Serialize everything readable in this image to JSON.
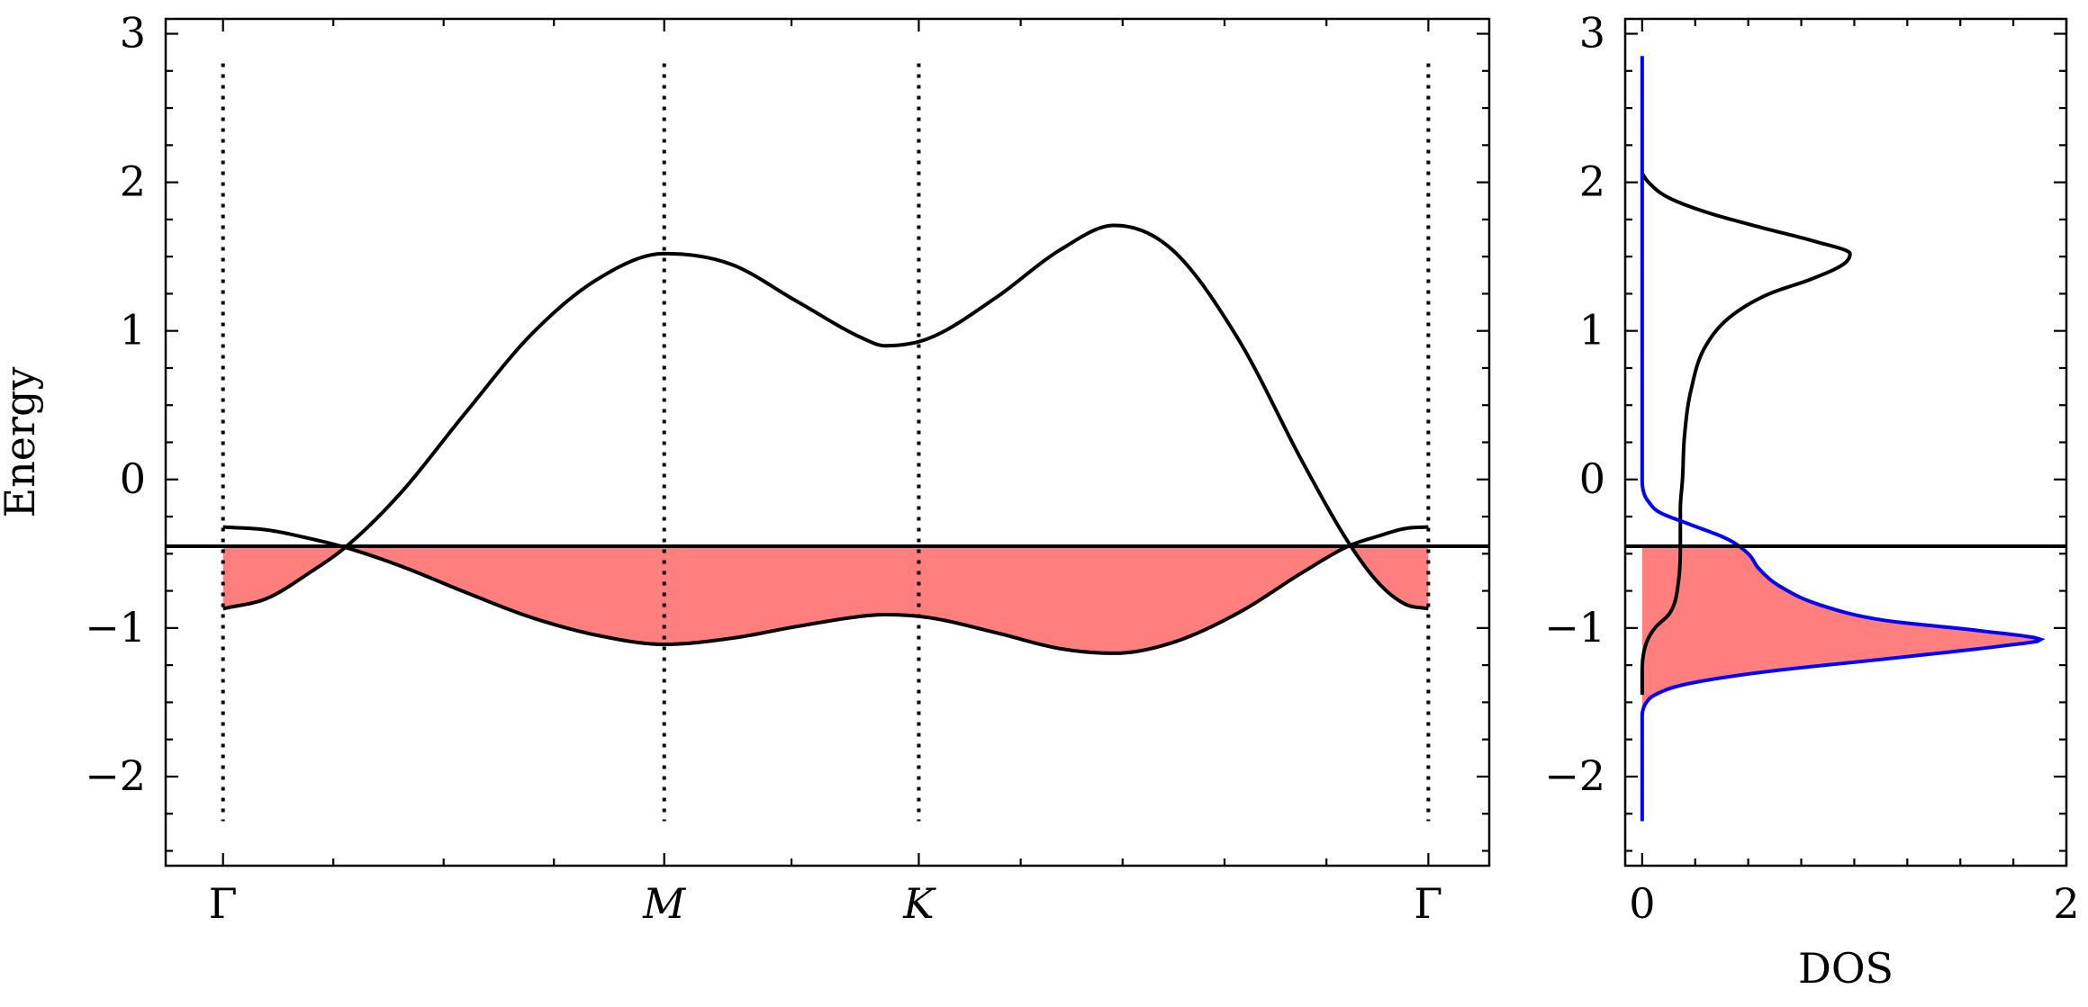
{
  "chart_data": [
    {
      "type": "line",
      "panel": "band structure",
      "ylabel": "Energy",
      "xlabel": "",
      "ylim": [
        -2.6,
        3.1
      ],
      "yticks": [
        -2,
        -1,
        0,
        1,
        2,
        3
      ],
      "ytick_labels": [
        "−2",
        "−1",
        "0",
        "1",
        "2",
        "3"
      ],
      "x_path_labels": [
        {
          "label": "Γ",
          "x": 0.0,
          "italic": false
        },
        {
          "label": "M",
          "x": 1.0,
          "italic": true
        },
        {
          "label": "K",
          "x": 1.577,
          "italic": true
        },
        {
          "label": "Γ",
          "x": 2.732,
          "italic": false
        }
      ],
      "xlim": [
        -0.13,
        2.87
      ],
      "fermi_level": -0.45,
      "vertical_dotted_lines_x": [
        0.0,
        1.0,
        1.577,
        2.732
      ],
      "vertical_dotted_lines_yrange": [
        -2.3,
        2.8
      ],
      "series": [
        {
          "band": "upper",
          "color": "#000000",
          "x": [
            0.0,
            0.1,
            0.2,
            0.28,
            0.4,
            0.55,
            0.7,
            0.85,
            1.0,
            1.15,
            1.3,
            1.45,
            1.5,
            1.6,
            1.75,
            1.9,
            2.02,
            2.15,
            2.3,
            2.45,
            2.55,
            2.62,
            2.68,
            2.732
          ],
          "y": [
            -0.87,
            -0.8,
            -0.62,
            -0.45,
            -0.1,
            0.45,
            0.98,
            1.35,
            1.52,
            1.45,
            1.2,
            0.95,
            0.9,
            0.95,
            1.22,
            1.55,
            1.71,
            1.55,
            0.95,
            0.1,
            -0.42,
            -0.7,
            -0.84,
            -0.87
          ]
        },
        {
          "band": "lower",
          "color": "#000000",
          "x": [
            0.0,
            0.1,
            0.2,
            0.28,
            0.4,
            0.55,
            0.7,
            0.85,
            1.0,
            1.15,
            1.3,
            1.45,
            1.5,
            1.6,
            1.75,
            1.9,
            2.02,
            2.15,
            2.3,
            2.45,
            2.55,
            2.62,
            2.68,
            2.732
          ],
          "y": [
            -0.32,
            -0.34,
            -0.4,
            -0.46,
            -0.58,
            -0.76,
            -0.93,
            -1.05,
            -1.11,
            -1.07,
            -0.99,
            -0.92,
            -0.91,
            -0.93,
            -1.03,
            -1.14,
            -1.17,
            -1.1,
            -0.9,
            -0.62,
            -0.45,
            -0.38,
            -0.33,
            -0.32
          ]
        }
      ],
      "fill_color": "#ff7f7f",
      "fill": "occupied states between the two bands below the Fermi level"
    },
    {
      "type": "line",
      "panel": "density of states",
      "xlabel": "DOS",
      "ylabel": "",
      "xlim": [
        -0.08,
        2.0
      ],
      "xticks": [
        0,
        2
      ],
      "xtick_labels": [
        "0",
        "2"
      ],
      "ylim": [
        -2.6,
        3.1
      ],
      "yticks": [
        -2,
        -1,
        0,
        1,
        2,
        3
      ],
      "ytick_labels": [
        "−2",
        "−1",
        "0",
        "1",
        "2",
        "3"
      ],
      "fermi_level": -0.45,
      "series": [
        {
          "name": "",
          "color": "#000000",
          "y": [
            -1.45,
            -1.3,
            -1.1,
            -1.0,
            -0.9,
            -0.7,
            -0.4,
            -0.2,
            0.0,
            0.3,
            0.6,
            0.9,
            1.1,
            1.25,
            1.35,
            1.45,
            1.52,
            1.6,
            1.7,
            1.8,
            1.9,
            2.0,
            2.06
          ],
          "x": [
            0.0,
            0.0,
            0.02,
            0.06,
            0.13,
            0.17,
            0.18,
            0.18,
            0.19,
            0.2,
            0.23,
            0.3,
            0.42,
            0.6,
            0.8,
            0.95,
            0.98,
            0.82,
            0.55,
            0.3,
            0.12,
            0.03,
            0.0
          ]
        },
        {
          "name": "",
          "color": "#0000ff",
          "y": [
            -2.3,
            -1.6,
            -1.5,
            -1.45,
            -1.38,
            -1.3,
            -1.2,
            -1.12,
            -1.08,
            -1.02,
            -0.95,
            -0.85,
            -0.72,
            -0.6,
            -0.5,
            -0.4,
            -0.3,
            -0.22,
            -0.15,
            -0.1,
            0.0,
            1.0,
            2.85
          ],
          "x": [
            0.0,
            0.0,
            0.02,
            0.06,
            0.2,
            0.55,
            1.2,
            1.7,
            1.88,
            1.6,
            1.15,
            0.85,
            0.65,
            0.55,
            0.5,
            0.4,
            0.22,
            0.08,
            0.03,
            0.01,
            0.0,
            0.0,
            0.0
          ]
        }
      ],
      "fill_color": "#ff7f7f",
      "fill": "blue curve area below the Fermi level"
    }
  ]
}
